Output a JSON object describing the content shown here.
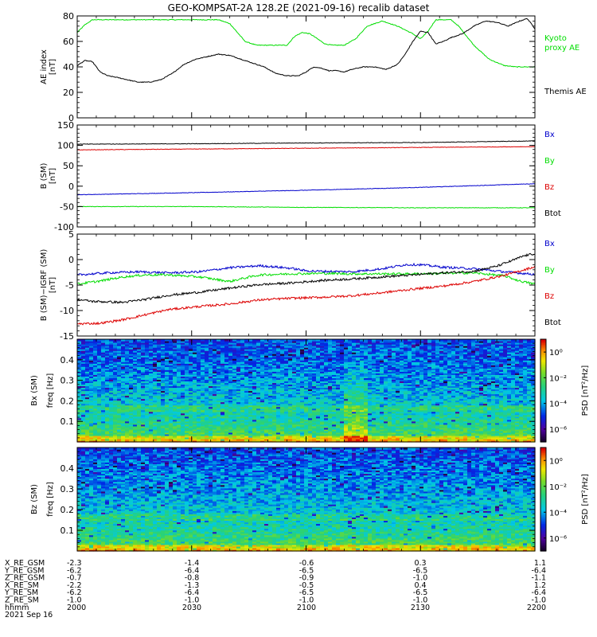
{
  "title": "GEO-KOMPSAT-2A 128.2E (2021-09-16) recalib dataset",
  "time_axis": {
    "tick_values": [
      2000,
      2030,
      2100,
      2130,
      2200
    ],
    "xlim": [
      0,
      120
    ],
    "tick_minutes": [
      0,
      30,
      60,
      90,
      120
    ]
  },
  "colors": {
    "black": "#000000",
    "green": "#00dd00",
    "blue": "#0000cc",
    "red": "#dd0000"
  },
  "chart_data": [
    {
      "type": "line",
      "id": "ae",
      "ylabel_lines": [
        "AE index",
        "[nT]"
      ],
      "ylim": [
        0,
        80
      ],
      "yticks": [
        0,
        20,
        40,
        60,
        80
      ],
      "legend": [
        {
          "text": "Kyoto",
          "color": "#00dd00"
        },
        {
          "text": "proxy AE",
          "color": "#00dd00"
        },
        {
          "text": "Themis AE",
          "color": "#000000"
        }
      ],
      "series": [
        {
          "name": "Kyoto proxy AE",
          "color": "#00dd00",
          "x": [
            0,
            2,
            4,
            6,
            8,
            10,
            14,
            18,
            22,
            26,
            30,
            34,
            37,
            40,
            42,
            44,
            47,
            50,
            53,
            55,
            57,
            59,
            61,
            63,
            65,
            67,
            70,
            73,
            76,
            80,
            84,
            88,
            90,
            92,
            94,
            96,
            98,
            100,
            104,
            108,
            112,
            115,
            117,
            120
          ],
          "y": [
            67,
            73,
            77,
            77,
            77,
            77,
            77,
            77,
            77,
            77,
            77,
            77,
            77,
            74,
            67,
            60,
            57,
            57,
            57,
            57,
            64,
            67,
            66,
            62,
            58,
            57,
            57,
            62,
            72,
            76,
            72,
            66,
            62,
            68,
            77,
            77,
            77,
            72,
            57,
            46,
            41,
            40,
            40,
            40
          ]
        },
        {
          "name": "Themis AE",
          "color": "#000000",
          "x": [
            0,
            2,
            4,
            6,
            8,
            10,
            13,
            16,
            19,
            22,
            25,
            28,
            31,
            34,
            37,
            40,
            43,
            46,
            49,
            52,
            55,
            58,
            60,
            62,
            64,
            66,
            68,
            70,
            72,
            75,
            78,
            81,
            84,
            86,
            88,
            90,
            92,
            94,
            96,
            98,
            101,
            104,
            107,
            110,
            113,
            116,
            118,
            120
          ],
          "y": [
            41,
            45,
            44,
            36,
            33,
            32,
            30,
            28,
            28,
            30,
            35,
            42,
            46,
            48,
            50,
            49,
            46,
            43,
            40,
            35,
            33,
            33,
            36,
            40,
            39,
            37,
            37,
            36,
            38,
            40,
            40,
            38,
            42,
            50,
            60,
            68,
            67,
            58,
            60,
            63,
            66,
            72,
            76,
            75,
            72,
            76,
            78,
            70
          ]
        }
      ]
    },
    {
      "type": "line",
      "id": "b",
      "ylabel_lines": [
        "B (SM)",
        "[nT]"
      ],
      "ylim": [
        -100,
        150
      ],
      "yticks": [
        -100,
        -50,
        0,
        50,
        100,
        150
      ],
      "legend": [
        {
          "text": "Bx",
          "color": "#0000cc"
        },
        {
          "text": "By",
          "color": "#00dd00"
        },
        {
          "text": "Bz",
          "color": "#dd0000"
        },
        {
          "text": "Btot",
          "color": "#000000"
        }
      ],
      "series": [
        {
          "name": "Bx",
          "color": "#0000cc",
          "x": [
            0,
            30,
            60,
            90,
            120
          ],
          "y": [
            -21,
            -16,
            -10,
            -3,
            6
          ]
        },
        {
          "name": "By",
          "color": "#00dd00",
          "x": [
            0,
            30,
            60,
            90,
            120
          ],
          "y": [
            -50,
            -50,
            -52,
            -53,
            -53
          ]
        },
        {
          "name": "Bz",
          "color": "#dd0000",
          "x": [
            0,
            30,
            60,
            90,
            120
          ],
          "y": [
            89,
            91,
            93,
            95,
            97
          ]
        },
        {
          "name": "Btot",
          "color": "#000000",
          "x": [
            0,
            30,
            60,
            90,
            120
          ],
          "y": [
            103,
            104,
            106,
            107,
            111
          ]
        }
      ]
    },
    {
      "type": "line",
      "id": "db",
      "ylabel_lines": [
        "B (SM)−IGRF (SM)",
        "[nT]"
      ],
      "ylim": [
        -15,
        5
      ],
      "yticks": [
        -15,
        -10,
        -5,
        0,
        5
      ],
      "legend": [
        {
          "text": "Bx",
          "color": "#0000cc"
        },
        {
          "text": "By",
          "color": "#00dd00"
        },
        {
          "text": "Bz",
          "color": "#dd0000"
        },
        {
          "text": "Btot",
          "color": "#000000"
        }
      ],
      "series": [
        {
          "name": "Bx",
          "color": "#0000cc",
          "x": [
            0,
            8,
            16,
            24,
            32,
            40,
            48,
            56,
            60,
            64,
            72,
            80,
            86,
            90,
            96,
            104,
            112,
            120
          ],
          "y": [
            -3,
            -2.6,
            -2.4,
            -2.6,
            -2.4,
            -1.6,
            -1.2,
            -1.7,
            -2.2,
            -2.3,
            -2.4,
            -1.8,
            -1.0,
            -1.0,
            -1.5,
            -1.8,
            -2.4,
            -2.9
          ]
        },
        {
          "name": "By",
          "color": "#00dd00",
          "x": [
            0,
            6,
            12,
            18,
            24,
            32,
            40,
            44,
            48,
            56,
            64,
            72,
            80,
            88,
            96,
            104,
            112,
            116,
            120
          ],
          "y": [
            -4.8,
            -4.2,
            -3.4,
            -3.0,
            -3.0,
            -3.4,
            -4.3,
            -3.6,
            -3.0,
            -2.8,
            -2.7,
            -2.8,
            -2.8,
            -2.8,
            -2.7,
            -2.6,
            -3.2,
            -4.2,
            -4.8
          ]
        },
        {
          "name": "Bz",
          "color": "#dd0000",
          "x": [
            0,
            6,
            12,
            18,
            24,
            32,
            40,
            48,
            56,
            64,
            72,
            80,
            88,
            96,
            104,
            112,
            120
          ],
          "y": [
            -12.6,
            -12.5,
            -11.8,
            -10.8,
            -9.8,
            -9.2,
            -8.7,
            -7.9,
            -7.6,
            -7.4,
            -7.1,
            -6.5,
            -5.8,
            -5.2,
            -4.3,
            -3.1,
            -1.4
          ]
        },
        {
          "name": "Btot",
          "color": "#000000",
          "x": [
            0,
            4,
            8,
            12,
            18,
            24,
            32,
            40,
            48,
            56,
            64,
            72,
            80,
            88,
            96,
            104,
            110,
            114,
            117,
            120
          ],
          "y": [
            -7.8,
            -8.2,
            -8.3,
            -8.4,
            -7.8,
            -7.0,
            -6.4,
            -5.6,
            -4.9,
            -4.6,
            -4.1,
            -3.8,
            -3.4,
            -3.0,
            -2.6,
            -2.3,
            -1.3,
            -0.2,
            0.7,
            1.2
          ]
        }
      ]
    },
    {
      "type": "heatmap",
      "id": "spec_bx",
      "ylabel_lines": [
        "Bx (SM)",
        "freq [Hz]"
      ],
      "ylim": [
        0,
        0.5
      ],
      "yticks": [
        0.1,
        0.2,
        0.3,
        0.4
      ],
      "colorbar": {
        "label": "PSD [nT²/Hz]",
        "ticks": [
          "10⁰",
          "10⁻²",
          "10⁻⁴",
          "10⁻⁶"
        ],
        "range_log": [
          -7,
          1
        ]
      }
    },
    {
      "type": "heatmap",
      "id": "spec_bz",
      "ylabel_lines": [
        "Bz (SM)",
        "freq [Hz]"
      ],
      "ylim": [
        0,
        0.5
      ],
      "yticks": [
        0.1,
        0.2,
        0.3,
        0.4
      ],
      "colorbar": {
        "label": "PSD [nT²/Hz]",
        "ticks": [
          "10⁰",
          "10⁻²",
          "10⁻⁴",
          "10⁻⁶"
        ],
        "range_log": [
          -7,
          1
        ]
      }
    }
  ],
  "ephemeris": {
    "labels": [
      "X_RE_GSM",
      "Y_RE_GSM",
      "Z_RE_GSM",
      "X_RE_SM",
      "Y_RE_SM",
      "Z_RE_SM",
      "hhmm",
      "2021 Sep 16"
    ],
    "columns": [
      [
        "-2.3",
        "-6.2",
        "-0.7",
        "-2.2",
        "-6.2",
        "-1.0",
        "2000"
      ],
      [
        "-1.4",
        "-6.4",
        "-0.8",
        "-1.3",
        "-6.4",
        "-1.0",
        "2030"
      ],
      [
        "-0.6",
        "-6.5",
        "-0.9",
        "-0.5",
        "-6.5",
        "-1.0",
        "2100"
      ],
      [
        "0.3",
        "-6.5",
        "-1.0",
        "0.4",
        "-6.5",
        "-1.0",
        "2130"
      ],
      [
        "1.1",
        "-6.4",
        "-1.1",
        "1.2",
        "-6.4",
        "-1.0",
        "2200"
      ]
    ]
  }
}
